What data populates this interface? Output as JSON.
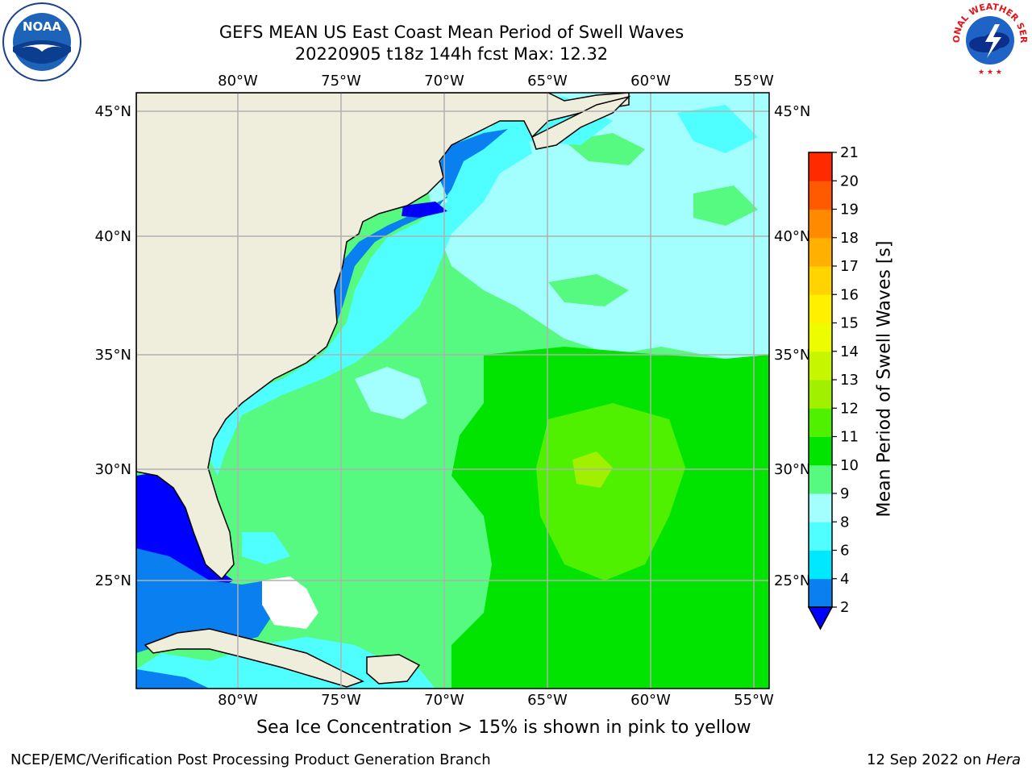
{
  "header": {
    "title_line1": "GEFS MEAN US East Coast Mean Period of Swell Waves",
    "title_line2": "20220905 t18z 144h fcst   Max: 12.32"
  },
  "map": {
    "lon_labels": [
      "80°W",
      "75°W",
      "70°W",
      "65°W",
      "60°W",
      "55°W"
    ],
    "lat_labels": [
      "45°N",
      "40°N",
      "35°N",
      "30°N",
      "25°N"
    ],
    "land_color": "#efeddc",
    "grid_color": "#b0b0b0"
  },
  "colorbar": {
    "label": "Mean Period of Swell Waves [s]",
    "ticks": [
      "2",
      "4",
      "6",
      "8",
      "9",
      "10",
      "11",
      "12",
      "13",
      "14",
      "15",
      "16",
      "17",
      "18",
      "19",
      "20",
      "21"
    ],
    "colors": [
      "#0a7ff0",
      "#00e8ff",
      "#4ffeff",
      "#a2fffe",
      "#57fa80",
      "#00e400",
      "#4ff000",
      "#a0f000",
      "#c6f700",
      "#eefc00",
      "#fff000",
      "#ffd400",
      "#ffb000",
      "#ff8a00",
      "#ff5a00",
      "#ff2a00",
      "#ff0000"
    ],
    "under_color": "#0000ff"
  },
  "note": "Sea Ice Concentration > 15% is shown in pink to yellow",
  "footer": {
    "left": "NCEP/EMC/Verification Post Processing Product Generation Branch",
    "right_prefix": "12 Sep 2022 on ",
    "right_host": "Hera"
  },
  "logos": {
    "noaa_text": "NOAA",
    "nws_text": "NATIONAL WEATHER SERVICE"
  }
}
